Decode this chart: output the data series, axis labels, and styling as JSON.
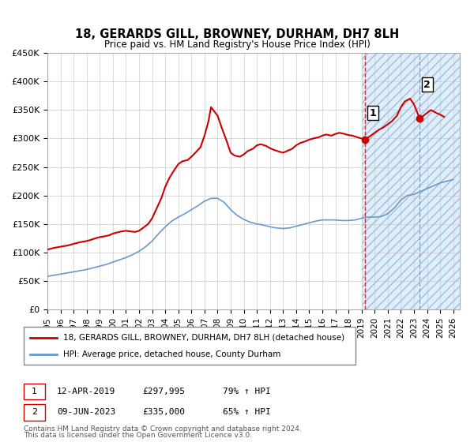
{
  "title": "18, GERARDS GILL, BROWNEY, DURHAM, DH7 8LH",
  "subtitle": "Price paid vs. HM Land Registry's House Price Index (HPI)",
  "legend_line1": "18, GERARDS GILL, BROWNEY, DURHAM, DH7 8LH (detached house)",
  "legend_line2": "HPI: Average price, detached house, County Durham",
  "footnote1": "Contains HM Land Registry data © Crown copyright and database right 2024.",
  "footnote2": "This data is licensed under the Open Government Licence v3.0.",
  "annotation1_num": "1",
  "annotation1_date": "12-APR-2019",
  "annotation1_price": "£297,995",
  "annotation1_hpi": "79% ↑ HPI",
  "annotation2_num": "2",
  "annotation2_date": "09-JUN-2023",
  "annotation2_price": "£335,000",
  "annotation2_hpi": "65% ↑ HPI",
  "transaction1_x": 2019.28,
  "transaction1_y": 297995,
  "transaction2_x": 2023.44,
  "transaction2_y": 335000,
  "ylim": [
    0,
    450000
  ],
  "xlim": [
    1995,
    2026.5
  ],
  "yticks": [
    0,
    50000,
    100000,
    150000,
    200000,
    250000,
    300000,
    350000,
    400000,
    450000
  ],
  "ytick_labels": [
    "£0",
    "£50K",
    "£100K",
    "£150K",
    "£200K",
    "£250K",
    "£300K",
    "£350K",
    "£400K",
    "£450K"
  ],
  "xticks": [
    1995,
    1996,
    1997,
    1998,
    1999,
    2000,
    2001,
    2002,
    2003,
    2004,
    2005,
    2006,
    2007,
    2008,
    2009,
    2010,
    2011,
    2012,
    2013,
    2014,
    2015,
    2016,
    2017,
    2018,
    2019,
    2020,
    2021,
    2022,
    2023,
    2024,
    2025,
    2026
  ],
  "red_color": "#cc0000",
  "blue_color": "#6699cc",
  "shade_color": "#ddeeff",
  "hatch_color": "#aabbcc",
  "grid_color": "#cccccc",
  "background_color": "#ffffff",
  "forecast_start": 2019.0,
  "red_line_data": {
    "x": [
      1995.0,
      1995.5,
      1996.0,
      1996.5,
      1997.0,
      1997.5,
      1998.0,
      1998.3,
      1998.7,
      1999.0,
      1999.3,
      1999.7,
      2000.0,
      2000.3,
      2000.7,
      2001.0,
      2001.3,
      2001.7,
      2002.0,
      2002.3,
      2002.7,
      2003.0,
      2003.3,
      2003.7,
      2004.0,
      2004.3,
      2004.7,
      2005.0,
      2005.3,
      2005.7,
      2006.0,
      2006.3,
      2006.7,
      2007.0,
      2007.3,
      2007.5,
      2008.0,
      2008.3,
      2008.7,
      2009.0,
      2009.3,
      2009.7,
      2010.0,
      2010.3,
      2010.7,
      2011.0,
      2011.3,
      2011.7,
      2012.0,
      2012.3,
      2012.7,
      2013.0,
      2013.3,
      2013.7,
      2014.0,
      2014.3,
      2014.7,
      2015.0,
      2015.3,
      2015.7,
      2016.0,
      2016.3,
      2016.7,
      2017.0,
      2017.3,
      2017.7,
      2018.0,
      2018.3,
      2018.7,
      2019.28,
      2020.0,
      2020.3,
      2020.7,
      2021.0,
      2021.3,
      2021.7,
      2022.0,
      2022.3,
      2022.7,
      2023.0,
      2023.44,
      2024.0,
      2024.3,
      2024.7,
      2025.0,
      2025.3
    ],
    "y": [
      105000,
      108000,
      110000,
      112000,
      115000,
      118000,
      120000,
      122000,
      125000,
      127000,
      128000,
      130000,
      133000,
      135000,
      137000,
      138000,
      137000,
      136000,
      138000,
      143000,
      150000,
      160000,
      175000,
      195000,
      215000,
      230000,
      245000,
      255000,
      260000,
      262000,
      268000,
      275000,
      285000,
      305000,
      330000,
      355000,
      340000,
      320000,
      295000,
      275000,
      270000,
      268000,
      272000,
      278000,
      282000,
      288000,
      290000,
      287000,
      283000,
      280000,
      277000,
      275000,
      278000,
      282000,
      288000,
      292000,
      295000,
      298000,
      300000,
      302000,
      305000,
      307000,
      305000,
      308000,
      310000,
      308000,
      306000,
      305000,
      302000,
      297995,
      310000,
      315000,
      320000,
      325000,
      330000,
      340000,
      355000,
      365000,
      370000,
      360000,
      335000,
      345000,
      350000,
      345000,
      342000,
      338000
    ]
  },
  "blue_line_data": {
    "x": [
      1995.0,
      1995.5,
      1996.0,
      1996.5,
      1997.0,
      1997.5,
      1998.0,
      1998.5,
      1999.0,
      1999.5,
      2000.0,
      2000.5,
      2001.0,
      2001.5,
      2002.0,
      2002.5,
      2003.0,
      2003.5,
      2004.0,
      2004.5,
      2005.0,
      2005.5,
      2006.0,
      2006.5,
      2007.0,
      2007.5,
      2008.0,
      2008.5,
      2009.0,
      2009.5,
      2010.0,
      2010.5,
      2011.0,
      2011.5,
      2012.0,
      2012.5,
      2013.0,
      2013.5,
      2014.0,
      2014.5,
      2015.0,
      2015.5,
      2016.0,
      2016.5,
      2017.0,
      2017.5,
      2018.0,
      2018.5,
      2019.0,
      2019.5,
      2020.0,
      2020.5,
      2021.0,
      2021.5,
      2022.0,
      2022.5,
      2023.0,
      2023.5,
      2024.0,
      2024.5,
      2025.0,
      2025.5,
      2026.0
    ],
    "y": [
      58000,
      60000,
      62000,
      64000,
      66000,
      68000,
      70000,
      73000,
      76000,
      79000,
      83000,
      87000,
      91000,
      96000,
      102000,
      110000,
      120000,
      133000,
      145000,
      155000,
      162000,
      168000,
      175000,
      182000,
      190000,
      195000,
      195000,
      188000,
      175000,
      165000,
      158000,
      153000,
      150000,
      148000,
      145000,
      143000,
      142000,
      143000,
      146000,
      149000,
      152000,
      155000,
      157000,
      157000,
      157000,
      156000,
      156000,
      157000,
      160000,
      162000,
      162000,
      163000,
      168000,
      178000,
      192000,
      200000,
      202000,
      207000,
      212000,
      217000,
      222000,
      225000,
      228000
    ]
  }
}
